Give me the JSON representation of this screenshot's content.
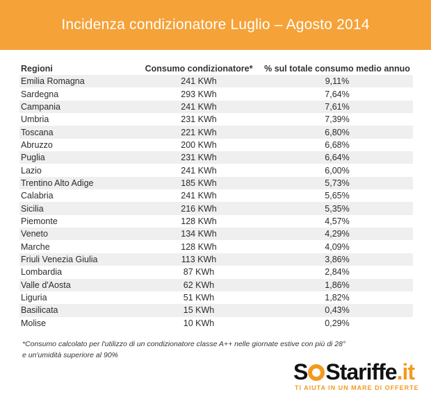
{
  "title": "Incidenza condizionatore Luglio – Agosto 2014",
  "table": {
    "headers": [
      "Regioni",
      "Consumo condizionatore*",
      "% sul totale consumo medio annuo"
    ],
    "rows": [
      [
        "Emilia Romagna",
        "241 KWh",
        "9,11%"
      ],
      [
        "Sardegna",
        "293 KWh",
        "7,64%"
      ],
      [
        "Campania",
        "241 KWh",
        "7,61%"
      ],
      [
        "Umbria",
        "231 KWh",
        "7,39%"
      ],
      [
        "Toscana",
        "221 KWh",
        "6,80%"
      ],
      [
        "Abruzzo",
        "200 KWh",
        "6,68%"
      ],
      [
        "Puglia",
        "231 KWh",
        "6,64%"
      ],
      [
        "Lazio",
        "241 KWh",
        "6,00%"
      ],
      [
        "Trentino Alto Adige",
        "185 KWh",
        "5,73%"
      ],
      [
        "Calabria",
        "241 KWh",
        "5,65%"
      ],
      [
        "Sicilia",
        "216 KWh",
        "5,35%"
      ],
      [
        "Piemonte",
        "128 KWh",
        "4,57%"
      ],
      [
        "Veneto",
        "134 KWh",
        "4,29%"
      ],
      [
        "Marche",
        "128 KWh",
        "4,09%"
      ],
      [
        "Friuli Venezia Giulia",
        "113 KWh",
        "3,86%"
      ],
      [
        "Lombardia",
        "87 KWh",
        "2,84%"
      ],
      [
        "Valle d'Aosta",
        "62 KWh",
        "1,86%"
      ],
      [
        "Liguria",
        "51 KWh",
        "1,82%"
      ],
      [
        "Basilicata",
        "15 KWh",
        "0,43%"
      ],
      [
        "Molise",
        "10 KWh",
        "0,29%"
      ]
    ]
  },
  "footnote": {
    "line1": "*Consumo calcolato per l'utilizzo di un condizionatore classe A++ nelle giornate estive con più di 28°",
    "line2": "e un'umidità superiore al 90%"
  },
  "logo": {
    "part1": "S",
    "part2": "S",
    "part3": "tariffe",
    "part4": ".",
    "part5": "it",
    "tagline": "TI AIUTA IN UN MARE DI OFFERTE",
    "icon": "lifebuoy-icon",
    "accent_color": "#f39a1e"
  },
  "colors": {
    "header_bg": "#f5a238",
    "stripe": "#efefef"
  }
}
